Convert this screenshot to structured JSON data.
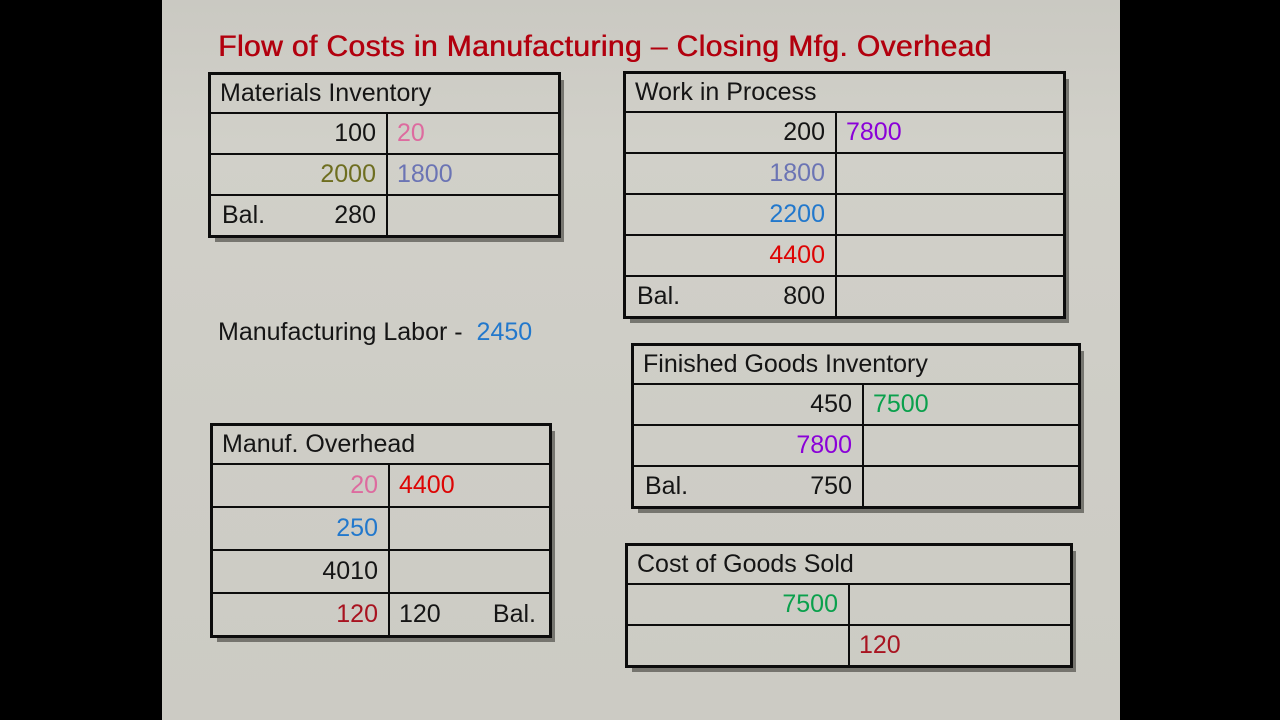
{
  "title": "Flow of Costs in Manufacturing – Closing Mfg. Overhead",
  "colors": {
    "title_red": "#b2000e",
    "black": "#151515",
    "pink": "#dd6b9f",
    "olive": "#6e6e20",
    "slate": "#6b74b4",
    "purple": "#8a00d8",
    "blue": "#2278cc",
    "red": "#dd0404",
    "green": "#0aa04c",
    "darkred": "#a81320"
  },
  "labor_line": {
    "label": "Manufacturing Labor -",
    "value": "2450"
  },
  "accounts": {
    "materials_inventory": {
      "title": "Materials Inventory",
      "rows": [
        {
          "debit": "100",
          "credit": "20"
        },
        {
          "debit": "2000",
          "credit": "1800"
        },
        {
          "bal_label": "Bal.",
          "debit": "280",
          "credit": ""
        }
      ]
    },
    "work_in_process": {
      "title": "Work in Process",
      "rows": [
        {
          "debit": "200",
          "credit": "7800"
        },
        {
          "debit": "1800",
          "credit": ""
        },
        {
          "debit": "2200",
          "credit": ""
        },
        {
          "debit": "4400",
          "credit": ""
        },
        {
          "bal_label": "Bal.",
          "debit": "800",
          "credit": ""
        }
      ]
    },
    "manuf_overhead": {
      "title": "Manuf. Overhead",
      "rows": [
        {
          "debit": "20",
          "credit": "4400"
        },
        {
          "debit": "250",
          "credit": ""
        },
        {
          "debit": "4010",
          "credit": ""
        },
        {
          "debit": "120",
          "credit": "120",
          "bal_label_right": "Bal."
        }
      ]
    },
    "finished_goods_inventory": {
      "title": "Finished Goods Inventory",
      "rows": [
        {
          "debit": "450",
          "credit": "7500"
        },
        {
          "debit": "7800",
          "credit": ""
        },
        {
          "bal_label": "Bal.",
          "debit": "750",
          "credit": ""
        }
      ]
    },
    "cost_of_goods_sold": {
      "title": "Cost of Goods Sold",
      "rows": [
        {
          "debit": "7500",
          "credit": ""
        },
        {
          "debit": "",
          "credit": "120"
        }
      ]
    }
  }
}
